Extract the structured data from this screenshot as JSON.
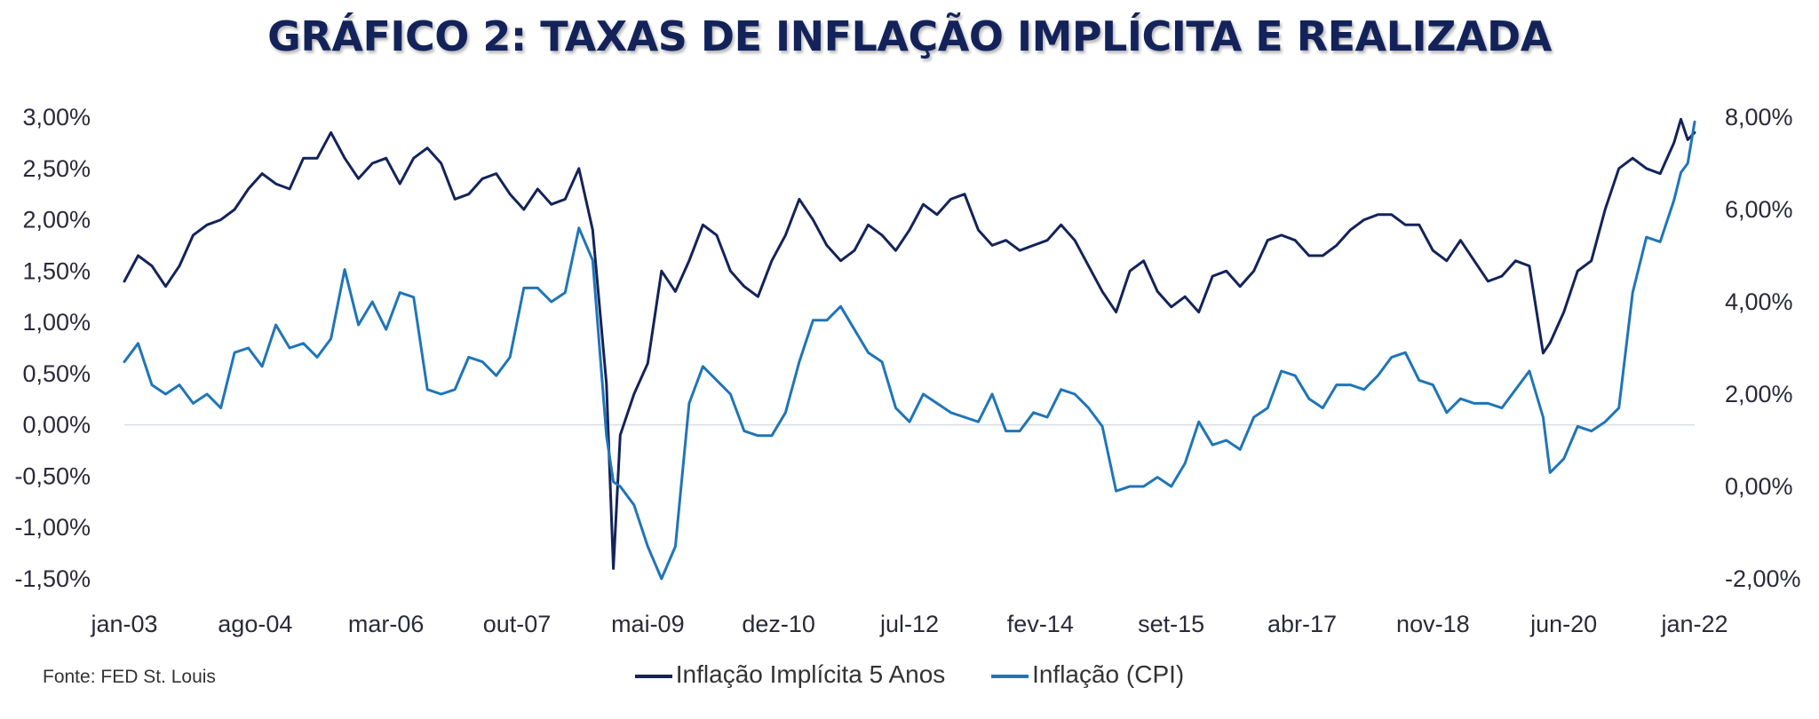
{
  "chart_data": {
    "type": "line",
    "title": "GRÁFICO 2: TAXAS DE INFLAÇÃO IMPLÍCITA E REALIZADA",
    "source": "Fonte:  FED St. Louis",
    "x_tick_labels": [
      "jan-03",
      "ago-04",
      "mar-06",
      "out-07",
      "mai-09",
      "dez-10",
      "jul-12",
      "fev-14",
      "set-15",
      "abr-17",
      "nov-18",
      "jun-20",
      "jan-22"
    ],
    "x_range": [
      "jan-03",
      "jan-22"
    ],
    "y_left": {
      "ylim": [
        -1.5,
        3.0
      ],
      "ticks": [
        3.0,
        2.5,
        2.0,
        1.5,
        1.0,
        0.5,
        0.0,
        -0.5,
        -1.0,
        -1.5
      ],
      "tick_labels": [
        "3,00%",
        "2,50%",
        "2,00%",
        "1,50%",
        "1,00%",
        "0,50%",
        "0,00%",
        "-0,50%",
        "-1,00%",
        "-1,50%"
      ]
    },
    "y_right": {
      "ylim": [
        -2.0,
        8.0
      ],
      "ticks": [
        8,
        6,
        4,
        2,
        0,
        -2
      ],
      "tick_labels": [
        "8,00%",
        "6,00%",
        "4,00%",
        "2,00%",
        "0,00%",
        "-2,00%"
      ]
    },
    "zero_line": true,
    "series": [
      {
        "name": "Inflação Implícita 5 Anos",
        "axis": "left",
        "color": "#13235a",
        "points": [
          [
            "jan-03",
            1.4
          ],
          [
            "mar-03",
            1.65
          ],
          [
            "mai-03",
            1.55
          ],
          [
            "jul-03",
            1.35
          ],
          [
            "set-03",
            1.55
          ],
          [
            "nov-03",
            1.85
          ],
          [
            "jan-04",
            1.95
          ],
          [
            "mar-04",
            2.0
          ],
          [
            "mai-04",
            2.1
          ],
          [
            "jul-04",
            2.3
          ],
          [
            "set-04",
            2.45
          ],
          [
            "nov-04",
            2.35
          ],
          [
            "jan-05",
            2.3
          ],
          [
            "mar-05",
            2.6
          ],
          [
            "mai-05",
            2.6
          ],
          [
            "jul-05",
            2.85
          ],
          [
            "set-05",
            2.6
          ],
          [
            "nov-05",
            2.4
          ],
          [
            "jan-06",
            2.55
          ],
          [
            "mar-06",
            2.6
          ],
          [
            "mai-06",
            2.35
          ],
          [
            "jul-06",
            2.6
          ],
          [
            "set-06",
            2.7
          ],
          [
            "nov-06",
            2.55
          ],
          [
            "jan-07",
            2.2
          ],
          [
            "mar-07",
            2.25
          ],
          [
            "mai-07",
            2.4
          ],
          [
            "jul-07",
            2.45
          ],
          [
            "set-07",
            2.25
          ],
          [
            "nov-07",
            2.1
          ],
          [
            "jan-08",
            2.3
          ],
          [
            "mar-08",
            2.15
          ],
          [
            "mai-08",
            2.2
          ],
          [
            "jul-08",
            2.5
          ],
          [
            "set-08",
            1.9
          ],
          [
            "nov-08",
            0.4
          ],
          [
            "dez-08",
            -1.4
          ],
          [
            "jan-09",
            -0.1
          ],
          [
            "mar-09",
            0.3
          ],
          [
            "mai-09",
            0.6
          ],
          [
            "jul-09",
            1.5
          ],
          [
            "set-09",
            1.3
          ],
          [
            "nov-09",
            1.6
          ],
          [
            "jan-10",
            1.95
          ],
          [
            "mar-10",
            1.85
          ],
          [
            "mai-10",
            1.5
          ],
          [
            "jul-10",
            1.35
          ],
          [
            "set-10",
            1.25
          ],
          [
            "nov-10",
            1.6
          ],
          [
            "jan-11",
            1.85
          ],
          [
            "mar-11",
            2.2
          ],
          [
            "mai-11",
            2.0
          ],
          [
            "jul-11",
            1.75
          ],
          [
            "set-11",
            1.6
          ],
          [
            "nov-11",
            1.7
          ],
          [
            "jan-12",
            1.95
          ],
          [
            "mar-12",
            1.85
          ],
          [
            "mai-12",
            1.7
          ],
          [
            "jul-12",
            1.9
          ],
          [
            "set-12",
            2.15
          ],
          [
            "nov-12",
            2.05
          ],
          [
            "jan-13",
            2.2
          ],
          [
            "mar-13",
            2.25
          ],
          [
            "mai-13",
            1.9
          ],
          [
            "jul-13",
            1.75
          ],
          [
            "set-13",
            1.8
          ],
          [
            "nov-13",
            1.7
          ],
          [
            "jan-14",
            1.75
          ],
          [
            "mar-14",
            1.8
          ],
          [
            "mai-14",
            1.95
          ],
          [
            "jul-14",
            1.8
          ],
          [
            "set-14",
            1.55
          ],
          [
            "nov-14",
            1.3
          ],
          [
            "jan-15",
            1.1
          ],
          [
            "mar-15",
            1.5
          ],
          [
            "mai-15",
            1.6
          ],
          [
            "jul-15",
            1.3
          ],
          [
            "set-15",
            1.15
          ],
          [
            "nov-15",
            1.25
          ],
          [
            "jan-16",
            1.1
          ],
          [
            "mar-16",
            1.45
          ],
          [
            "mai-16",
            1.5
          ],
          [
            "jul-16",
            1.35
          ],
          [
            "set-16",
            1.5
          ],
          [
            "nov-16",
            1.8
          ],
          [
            "jan-17",
            1.85
          ],
          [
            "mar-17",
            1.8
          ],
          [
            "mai-17",
            1.65
          ],
          [
            "jul-17",
            1.65
          ],
          [
            "set-17",
            1.75
          ],
          [
            "nov-17",
            1.9
          ],
          [
            "jan-18",
            2.0
          ],
          [
            "mar-18",
            2.05
          ],
          [
            "mai-18",
            2.05
          ],
          [
            "jul-18",
            1.95
          ],
          [
            "set-18",
            1.95
          ],
          [
            "nov-18",
            1.7
          ],
          [
            "jan-19",
            1.6
          ],
          [
            "mar-19",
            1.8
          ],
          [
            "mai-19",
            1.6
          ],
          [
            "jul-19",
            1.4
          ],
          [
            "set-19",
            1.45
          ],
          [
            "nov-19",
            1.6
          ],
          [
            "jan-20",
            1.55
          ],
          [
            "mar-20",
            0.7
          ],
          [
            "abr-20",
            0.8
          ],
          [
            "jun-20",
            1.1
          ],
          [
            "ago-20",
            1.5
          ],
          [
            "out-20",
            1.6
          ],
          [
            "dez-20",
            2.1
          ],
          [
            "fev-21",
            2.5
          ],
          [
            "abr-21",
            2.6
          ],
          [
            "jun-21",
            2.5
          ],
          [
            "ago-21",
            2.45
          ],
          [
            "out-21",
            2.75
          ],
          [
            "nov-21",
            2.98
          ],
          [
            "dez-21",
            2.78
          ],
          [
            "jan-22",
            2.85
          ]
        ]
      },
      {
        "name": "Inflação (CPI)",
        "axis": "right",
        "color": "#1f75b8",
        "points": [
          [
            "jan-03",
            2.7
          ],
          [
            "mar-03",
            3.1
          ],
          [
            "mai-03",
            2.2
          ],
          [
            "jul-03",
            2.0
          ],
          [
            "set-03",
            2.2
          ],
          [
            "nov-03",
            1.8
          ],
          [
            "jan-04",
            2.0
          ],
          [
            "mar-04",
            1.7
          ],
          [
            "mai-04",
            2.9
          ],
          [
            "jul-04",
            3.0
          ],
          [
            "set-04",
            2.6
          ],
          [
            "nov-04",
            3.5
          ],
          [
            "jan-05",
            3.0
          ],
          [
            "mar-05",
            3.1
          ],
          [
            "mai-05",
            2.8
          ],
          [
            "jul-05",
            3.2
          ],
          [
            "set-05",
            4.7
          ],
          [
            "nov-05",
            3.5
          ],
          [
            "jan-06",
            4.0
          ],
          [
            "mar-06",
            3.4
          ],
          [
            "mai-06",
            4.2
          ],
          [
            "jul-06",
            4.1
          ],
          [
            "set-06",
            2.1
          ],
          [
            "nov-06",
            2.0
          ],
          [
            "jan-07",
            2.1
          ],
          [
            "mar-07",
            2.8
          ],
          [
            "mai-07",
            2.7
          ],
          [
            "jul-07",
            2.4
          ],
          [
            "set-07",
            2.8
          ],
          [
            "nov-07",
            4.3
          ],
          [
            "jan-08",
            4.3
          ],
          [
            "mar-08",
            4.0
          ],
          [
            "mai-08",
            4.2
          ],
          [
            "jul-08",
            5.6
          ],
          [
            "set-08",
            4.9
          ],
          [
            "nov-08",
            1.1
          ],
          [
            "dez-08",
            0.1
          ],
          [
            "jan-09",
            0.0
          ],
          [
            "mar-09",
            -0.4
          ],
          [
            "mai-09",
            -1.3
          ],
          [
            "jul-09",
            -2.0
          ],
          [
            "set-09",
            -1.3
          ],
          [
            "nov-09",
            1.8
          ],
          [
            "jan-10",
            2.6
          ],
          [
            "mar-10",
            2.3
          ],
          [
            "mai-10",
            2.0
          ],
          [
            "jul-10",
            1.2
          ],
          [
            "set-10",
            1.1
          ],
          [
            "nov-10",
            1.1
          ],
          [
            "jan-11",
            1.6
          ],
          [
            "mar-11",
            2.7
          ],
          [
            "mai-11",
            3.6
          ],
          [
            "jul-11",
            3.6
          ],
          [
            "set-11",
            3.9
          ],
          [
            "nov-11",
            3.4
          ],
          [
            "jan-12",
            2.9
          ],
          [
            "mar-12",
            2.7
          ],
          [
            "mai-12",
            1.7
          ],
          [
            "jul-12",
            1.4
          ],
          [
            "set-12",
            2.0
          ],
          [
            "nov-12",
            1.8
          ],
          [
            "jan-13",
            1.6
          ],
          [
            "mar-13",
            1.5
          ],
          [
            "mai-13",
            1.4
          ],
          [
            "jul-13",
            2.0
          ],
          [
            "set-13",
            1.2
          ],
          [
            "nov-13",
            1.2
          ],
          [
            "jan-14",
            1.6
          ],
          [
            "mar-14",
            1.5
          ],
          [
            "mai-14",
            2.1
          ],
          [
            "jul-14",
            2.0
          ],
          [
            "set-14",
            1.7
          ],
          [
            "nov-14",
            1.3
          ],
          [
            "jan-15",
            -0.1
          ],
          [
            "mar-15",
            0.0
          ],
          [
            "mai-15",
            0.0
          ],
          [
            "jul-15",
            0.2
          ],
          [
            "set-15",
            0.0
          ],
          [
            "nov-15",
            0.5
          ],
          [
            "jan-16",
            1.4
          ],
          [
            "mar-16",
            0.9
          ],
          [
            "mai-16",
            1.0
          ],
          [
            "jul-16",
            0.8
          ],
          [
            "set-16",
            1.5
          ],
          [
            "nov-16",
            1.7
          ],
          [
            "jan-17",
            2.5
          ],
          [
            "mar-17",
            2.4
          ],
          [
            "mai-17",
            1.9
          ],
          [
            "jul-17",
            1.7
          ],
          [
            "set-17",
            2.2
          ],
          [
            "nov-17",
            2.2
          ],
          [
            "jan-18",
            2.1
          ],
          [
            "mar-18",
            2.4
          ],
          [
            "mai-18",
            2.8
          ],
          [
            "jul-18",
            2.9
          ],
          [
            "set-18",
            2.3
          ],
          [
            "nov-18",
            2.2
          ],
          [
            "jan-19",
            1.6
          ],
          [
            "mar-19",
            1.9
          ],
          [
            "mai-19",
            1.8
          ],
          [
            "jul-19",
            1.8
          ],
          [
            "set-19",
            1.7
          ],
          [
            "nov-19",
            2.1
          ],
          [
            "jan-20",
            2.5
          ],
          [
            "mar-20",
            1.5
          ],
          [
            "abr-20",
            0.3
          ],
          [
            "jun-20",
            0.6
          ],
          [
            "ago-20",
            1.3
          ],
          [
            "out-20",
            1.2
          ],
          [
            "dez-20",
            1.4
          ],
          [
            "fev-21",
            1.7
          ],
          [
            "abr-21",
            4.2
          ],
          [
            "jun-21",
            5.4
          ],
          [
            "ago-21",
            5.3
          ],
          [
            "out-21",
            6.2
          ],
          [
            "nov-21",
            6.8
          ],
          [
            "dez-21",
            7.0
          ],
          [
            "jan-22",
            7.9
          ]
        ]
      }
    ]
  }
}
